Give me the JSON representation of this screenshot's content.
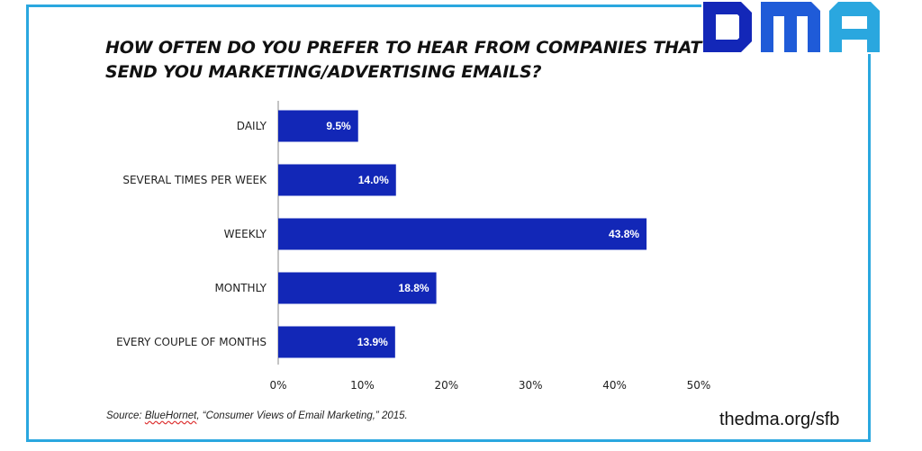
{
  "logo": {
    "text": "DMA",
    "colors": {
      "d": "#1327b8",
      "m": "#1f5bd8",
      "a": "#2aa7df"
    }
  },
  "frame_color": "#2aa7df",
  "chart_data": {
    "type": "bar",
    "orientation": "horizontal",
    "title_lines": [
      "HOW OFTEN DO YOU PREFER TO HEAR FROM COMPANIES THAT",
      "SEND YOU MARKETING/ADVERTISING  EMAILS?"
    ],
    "categories": [
      "DAILY",
      "SEVERAL TIMES PER WEEK",
      "WEEKLY",
      "MONTHLY",
      "EVERY COUPLE OF MONTHS"
    ],
    "values": [
      9.5,
      14.0,
      43.8,
      18.8,
      13.9
    ],
    "data_labels": [
      "9.5%",
      "14.0%",
      "43.8%",
      "18.8%",
      "13.9%"
    ],
    "xlim": [
      0,
      50
    ],
    "xticks": [
      0,
      10,
      20,
      30,
      40,
      50
    ],
    "xtick_labels": [
      "0%",
      "10%",
      "20%",
      "30%",
      "40%",
      "50%"
    ],
    "bar_color": "#1227b7",
    "label_color": "#ffffff",
    "grid": false
  },
  "source": {
    "prefix": "Source:  ",
    "name": "BlueHornet",
    "rest": ", “Consumer Views of Email Marketing,”  2015."
  },
  "url": "thedma.org/sfb"
}
